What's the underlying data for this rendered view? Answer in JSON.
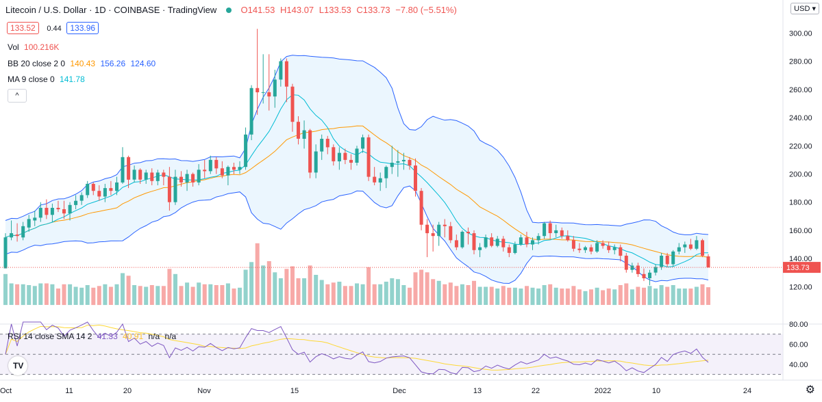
{
  "header": {
    "symbol": "Litecoin / U.S. Dollar · 1D · COINBASE · TradingView",
    "open": "O141.53",
    "high": "H143.07",
    "low": "L133.53",
    "close": "C133.73",
    "change": "−7.80 (−5.51%)",
    "bid": "133.52",
    "spread": "0.44",
    "ask": "133.96",
    "currency": "USD",
    "collapse_glyph": "^"
  },
  "legend": {
    "vol_label": "Vol",
    "vol_value": "100.216K",
    "bb_label": "BB 20 close 2 0",
    "bb_basis": "140.43",
    "bb_upper": "156.26",
    "bb_lower": "124.60",
    "ma_label": "MA 9 close 0",
    "ma_value": "141.78",
    "rsi_label": "RSI 14 close SMA 14 2",
    "rsi_value": "41.33",
    "rsi_sma": "40.91",
    "rsi_na1": "n/a",
    "rsi_na2": "n/a"
  },
  "colors": {
    "up": "#26a69a",
    "down": "#ef5350",
    "bb_line": "#2962ff",
    "bb_fill": "#e3f2fd",
    "basis": "#ff9800",
    "ma": "#00bcd4",
    "rsi": "#7e57c2",
    "rsi_sma": "#fdd835",
    "rsi_band": "#ede7f6"
  },
  "chart_data": {
    "type": "candlestick",
    "price_axis": {
      "ticks": [
        "120.00",
        "140.00",
        "160.00",
        "180.00",
        "200.00",
        "220.00",
        "240.00",
        "260.00",
        "280.00",
        "300.00"
      ],
      "ylim": [
        110,
        306
      ],
      "last_price_label": "133.73"
    },
    "time_axis": {
      "labels": [
        "Oct",
        "11",
        "20",
        "Nov",
        "15",
        "Dec",
        "13",
        "22",
        "2022",
        "10",
        "24"
      ]
    },
    "candles": [
      {
        "o": 133,
        "h": 158,
        "l": 133,
        "c": 155
      },
      {
        "o": 155,
        "h": 167,
        "l": 153,
        "c": 158
      },
      {
        "o": 157,
        "h": 165,
        "l": 152,
        "c": 156
      },
      {
        "o": 155,
        "h": 166,
        "l": 153,
        "c": 163
      },
      {
        "o": 162,
        "h": 171,
        "l": 159,
        "c": 168
      },
      {
        "o": 167,
        "h": 174,
        "l": 163,
        "c": 169
      },
      {
        "o": 169,
        "h": 180,
        "l": 166,
        "c": 176
      },
      {
        "o": 176,
        "h": 182,
        "l": 168,
        "c": 171
      },
      {
        "o": 171,
        "h": 179,
        "l": 166,
        "c": 176
      },
      {
        "o": 176,
        "h": 181,
        "l": 173,
        "c": 175
      },
      {
        "o": 175,
        "h": 181,
        "l": 168,
        "c": 172
      },
      {
        "o": 172,
        "h": 180,
        "l": 167,
        "c": 178
      },
      {
        "o": 178,
        "h": 185,
        "l": 175,
        "c": 181
      },
      {
        "o": 181,
        "h": 187,
        "l": 178,
        "c": 185
      },
      {
        "o": 185,
        "h": 195,
        "l": 183,
        "c": 193
      },
      {
        "o": 193,
        "h": 194,
        "l": 185,
        "c": 188
      },
      {
        "o": 188,
        "h": 192,
        "l": 181,
        "c": 184
      },
      {
        "o": 184,
        "h": 193,
        "l": 180,
        "c": 190
      },
      {
        "o": 190,
        "h": 195,
        "l": 185,
        "c": 188
      },
      {
        "o": 188,
        "h": 198,
        "l": 185,
        "c": 194
      },
      {
        "o": 194,
        "h": 219,
        "l": 193,
        "c": 212
      },
      {
        "o": 212,
        "h": 213,
        "l": 190,
        "c": 196
      },
      {
        "o": 196,
        "h": 206,
        "l": 194,
        "c": 203
      },
      {
        "o": 203,
        "h": 204,
        "l": 193,
        "c": 196
      },
      {
        "o": 196,
        "h": 203,
        "l": 193,
        "c": 201
      },
      {
        "o": 201,
        "h": 204,
        "l": 192,
        "c": 195
      },
      {
        "o": 195,
        "h": 203,
        "l": 192,
        "c": 201
      },
      {
        "o": 201,
        "h": 203,
        "l": 192,
        "c": 198
      },
      {
        "o": 198,
        "h": 205,
        "l": 174,
        "c": 180
      },
      {
        "o": 180,
        "h": 203,
        "l": 178,
        "c": 198
      },
      {
        "o": 198,
        "h": 202,
        "l": 191,
        "c": 194
      },
      {
        "o": 194,
        "h": 203,
        "l": 188,
        "c": 200
      },
      {
        "o": 200,
        "h": 201,
        "l": 191,
        "c": 194
      },
      {
        "o": 194,
        "h": 207,
        "l": 192,
        "c": 203
      },
      {
        "o": 203,
        "h": 210,
        "l": 197,
        "c": 202
      },
      {
        "o": 202,
        "h": 213,
        "l": 200,
        "c": 210
      },
      {
        "o": 210,
        "h": 212,
        "l": 200,
        "c": 204
      },
      {
        "o": 204,
        "h": 209,
        "l": 197,
        "c": 199
      },
      {
        "o": 199,
        "h": 206,
        "l": 192,
        "c": 205
      },
      {
        "o": 205,
        "h": 208,
        "l": 200,
        "c": 203
      },
      {
        "o": 203,
        "h": 209,
        "l": 200,
        "c": 205
      },
      {
        "o": 205,
        "h": 233,
        "l": 203,
        "c": 228
      },
      {
        "o": 228,
        "h": 263,
        "l": 224,
        "c": 261
      },
      {
        "o": 261,
        "h": 303,
        "l": 242,
        "c": 258
      },
      {
        "o": 258,
        "h": 285,
        "l": 250,
        "c": 258
      },
      {
        "o": 258,
        "h": 285,
        "l": 245,
        "c": 255
      },
      {
        "o": 255,
        "h": 274,
        "l": 247,
        "c": 267
      },
      {
        "o": 267,
        "h": 282,
        "l": 262,
        "c": 280
      },
      {
        "o": 280,
        "h": 282,
        "l": 251,
        "c": 262
      },
      {
        "o": 262,
        "h": 264,
        "l": 230,
        "c": 237
      },
      {
        "o": 237,
        "h": 241,
        "l": 221,
        "c": 225
      },
      {
        "o": 225,
        "h": 238,
        "l": 218,
        "c": 231
      },
      {
        "o": 231,
        "h": 232,
        "l": 197,
        "c": 201
      },
      {
        "o": 201,
        "h": 221,
        "l": 197,
        "c": 216
      },
      {
        "o": 216,
        "h": 228,
        "l": 210,
        "c": 225
      },
      {
        "o": 225,
        "h": 227,
        "l": 214,
        "c": 219
      },
      {
        "o": 219,
        "h": 221,
        "l": 206,
        "c": 209
      },
      {
        "o": 209,
        "h": 219,
        "l": 203,
        "c": 215
      },
      {
        "o": 215,
        "h": 218,
        "l": 207,
        "c": 210
      },
      {
        "o": 210,
        "h": 214,
        "l": 203,
        "c": 208
      },
      {
        "o": 208,
        "h": 220,
        "l": 206,
        "c": 218
      },
      {
        "o": 218,
        "h": 228,
        "l": 215,
        "c": 226
      },
      {
        "o": 226,
        "h": 228,
        "l": 195,
        "c": 198
      },
      {
        "o": 198,
        "h": 205,
        "l": 192,
        "c": 194
      },
      {
        "o": 194,
        "h": 201,
        "l": 188,
        "c": 197
      },
      {
        "o": 197,
        "h": 206,
        "l": 190,
        "c": 205
      },
      {
        "o": 205,
        "h": 220,
        "l": 200,
        "c": 208
      },
      {
        "o": 208,
        "h": 217,
        "l": 198,
        "c": 209
      },
      {
        "o": 209,
        "h": 215,
        "l": 203,
        "c": 210
      },
      {
        "o": 210,
        "h": 212,
        "l": 203,
        "c": 206
      },
      {
        "o": 206,
        "h": 211,
        "l": 184,
        "c": 188
      },
      {
        "o": 188,
        "h": 190,
        "l": 160,
        "c": 164
      },
      {
        "o": 164,
        "h": 168,
        "l": 141,
        "c": 158
      },
      {
        "o": 158,
        "h": 164,
        "l": 145,
        "c": 156
      },
      {
        "o": 156,
        "h": 166,
        "l": 149,
        "c": 164
      },
      {
        "o": 164,
        "h": 168,
        "l": 155,
        "c": 163
      },
      {
        "o": 163,
        "h": 166,
        "l": 151,
        "c": 153
      },
      {
        "o": 153,
        "h": 157,
        "l": 146,
        "c": 148
      },
      {
        "o": 148,
        "h": 160,
        "l": 147,
        "c": 159
      },
      {
        "o": 159,
        "h": 162,
        "l": 150,
        "c": 158
      },
      {
        "o": 158,
        "h": 160,
        "l": 143,
        "c": 146
      },
      {
        "o": 146,
        "h": 151,
        "l": 141,
        "c": 148
      },
      {
        "o": 148,
        "h": 157,
        "l": 147,
        "c": 155
      },
      {
        "o": 155,
        "h": 158,
        "l": 148,
        "c": 149
      },
      {
        "o": 149,
        "h": 156,
        "l": 148,
        "c": 154
      },
      {
        "o": 154,
        "h": 156,
        "l": 145,
        "c": 148
      },
      {
        "o": 148,
        "h": 150,
        "l": 141,
        "c": 144
      },
      {
        "o": 144,
        "h": 152,
        "l": 143,
        "c": 150
      },
      {
        "o": 150,
        "h": 157,
        "l": 149,
        "c": 155
      },
      {
        "o": 155,
        "h": 159,
        "l": 148,
        "c": 150
      },
      {
        "o": 150,
        "h": 155,
        "l": 146,
        "c": 153
      },
      {
        "o": 153,
        "h": 158,
        "l": 150,
        "c": 156
      },
      {
        "o": 156,
        "h": 166,
        "l": 154,
        "c": 165
      },
      {
        "o": 165,
        "h": 167,
        "l": 154,
        "c": 158
      },
      {
        "o": 158,
        "h": 164,
        "l": 155,
        "c": 160
      },
      {
        "o": 160,
        "h": 162,
        "l": 154,
        "c": 156
      },
      {
        "o": 156,
        "h": 160,
        "l": 152,
        "c": 153
      },
      {
        "o": 153,
        "h": 156,
        "l": 145,
        "c": 147
      },
      {
        "o": 147,
        "h": 151,
        "l": 144,
        "c": 146
      },
      {
        "o": 146,
        "h": 149,
        "l": 144,
        "c": 148
      },
      {
        "o": 148,
        "h": 150,
        "l": 143,
        "c": 145
      },
      {
        "o": 145,
        "h": 153,
        "l": 144,
        "c": 151
      },
      {
        "o": 151,
        "h": 153,
        "l": 147,
        "c": 149
      },
      {
        "o": 149,
        "h": 152,
        "l": 144,
        "c": 146
      },
      {
        "o": 146,
        "h": 150,
        "l": 143,
        "c": 148
      },
      {
        "o": 148,
        "h": 150,
        "l": 138,
        "c": 142
      },
      {
        "o": 142,
        "h": 144,
        "l": 130,
        "c": 132
      },
      {
        "o": 132,
        "h": 137,
        "l": 130,
        "c": 135
      },
      {
        "o": 135,
        "h": 137,
        "l": 127,
        "c": 129
      },
      {
        "o": 129,
        "h": 133,
        "l": 124,
        "c": 126
      },
      {
        "o": 126,
        "h": 132,
        "l": 121,
        "c": 130
      },
      {
        "o": 130,
        "h": 136,
        "l": 128,
        "c": 134
      },
      {
        "o": 134,
        "h": 144,
        "l": 132,
        "c": 142
      },
      {
        "o": 142,
        "h": 144,
        "l": 134,
        "c": 136
      },
      {
        "o": 136,
        "h": 146,
        "l": 134,
        "c": 145
      },
      {
        "o": 145,
        "h": 151,
        "l": 143,
        "c": 148
      },
      {
        "o": 148,
        "h": 152,
        "l": 144,
        "c": 150
      },
      {
        "o": 150,
        "h": 154,
        "l": 146,
        "c": 147
      },
      {
        "o": 147,
        "h": 156,
        "l": 146,
        "c": 153
      },
      {
        "o": 153,
        "h": 154,
        "l": 141,
        "c": 142
      },
      {
        "o": 141.53,
        "h": 143.07,
        "l": 133.53,
        "c": 133.73
      }
    ]
  }
}
